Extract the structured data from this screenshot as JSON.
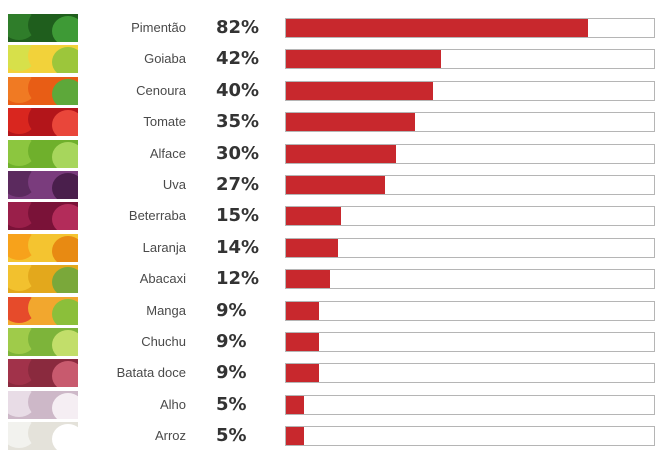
{
  "chart_data": {
    "type": "bar",
    "orientation": "horizontal",
    "categories": [
      "Pimentão",
      "Goiaba",
      "Cenoura",
      "Tomate",
      "Alface",
      "Uva",
      "Beterraba",
      "Laranja",
      "Abacaxi",
      "Manga",
      "Chuchu",
      "Batata doce",
      "Alho",
      "Arroz"
    ],
    "values": [
      82,
      42,
      40,
      35,
      30,
      27,
      15,
      14,
      12,
      9,
      9,
      9,
      5,
      5
    ],
    "value_labels": [
      "82%",
      "42%",
      "40%",
      "35%",
      "30%",
      "27%",
      "15%",
      "14%",
      "12%",
      "9%",
      "9%",
      "9%",
      "5%",
      "5%"
    ],
    "xlim": [
      0,
      100
    ],
    "grid": false,
    "legend": "none",
    "bar_color": "#c8282d",
    "track_border_color": "#b5b5b5",
    "thumbnail_icons": [
      "bell-pepper-icon",
      "guava-icon",
      "carrot-icon",
      "tomato-icon",
      "lettuce-icon",
      "grape-icon",
      "beet-icon",
      "orange-icon",
      "pineapple-icon",
      "mango-icon",
      "chayote-icon",
      "sweet-potato-icon",
      "garlic-icon",
      "rice-icon"
    ],
    "thumbnail_colors": [
      [
        "#2f7d2a",
        "#1f5e1d",
        "#3e9a36"
      ],
      [
        "#d7e04a",
        "#f2d23a",
        "#9cc63b"
      ],
      [
        "#f07a23",
        "#e85d15",
        "#5da83a"
      ],
      [
        "#d9261f",
        "#b3151a",
        "#e9463a"
      ],
      [
        "#8cc63f",
        "#6fb02c",
        "#a7d65c"
      ],
      [
        "#5b2a5e",
        "#7a3c7d",
        "#4a1f4c"
      ],
      [
        "#9a1f4a",
        "#7a1238",
        "#b32c5a"
      ],
      [
        "#f7a21b",
        "#f4c430",
        "#e88a12"
      ],
      [
        "#f2c12e",
        "#e3a81c",
        "#7aa83a"
      ],
      [
        "#e64b2b",
        "#f2a72e",
        "#8bbf3a"
      ],
      [
        "#9fcb4a",
        "#7db43a",
        "#c2de6a"
      ],
      [
        "#a1324a",
        "#8a2a3e",
        "#c85a6e"
      ],
      [
        "#e8dce6",
        "#cdb8c8",
        "#f5eef3"
      ],
      [
        "#f2f2ee",
        "#e4e2da",
        "#ffffff"
      ]
    ]
  }
}
